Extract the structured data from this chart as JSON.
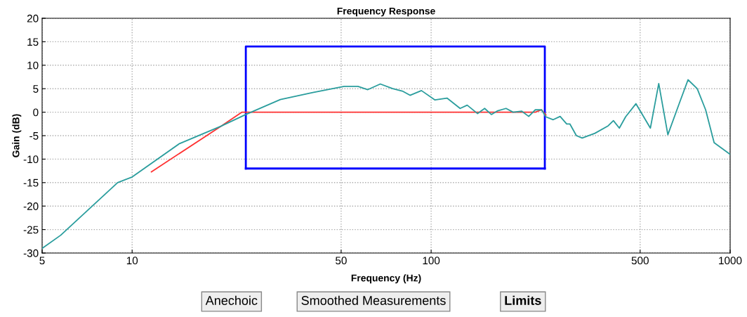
{
  "chart_data": {
    "type": "line",
    "title": "Frequency Response",
    "xlabel": "Frequency (Hz)",
    "ylabel": "Gain (dB)",
    "log": "x",
    "xlim": [
      5,
      1000
    ],
    "xticks": [
      5,
      10,
      50,
      100,
      500,
      1000
    ],
    "ylim": [
      -30,
      20
    ],
    "yticks": [
      -30,
      -25,
      -20,
      -15,
      -10,
      -5,
      0,
      5,
      10,
      15,
      20
    ],
    "grid": true,
    "line_style": "solid",
    "marker": "none",
    "annotations": [
      "Anechoic",
      "Smoothed Measurements",
      "Limits"
    ],
    "series": [
      {
        "color": "#0000ff",
        "x": [
          24,
          24,
          240,
          240
        ],
        "values": [
          -12,
          14,
          14,
          -12
        ]
      },
      {
        "color": "#0000ff",
        "x": [
          24,
          240
        ],
        "values": [
          -12,
          -12
        ]
      },
      {
        "color": "#ff3030",
        "x": [
          11.6,
          19.8,
          23.3,
          100,
          223,
          234,
          242
        ],
        "values": [
          -12.7,
          -3,
          0,
          0,
          0,
          0.5,
          -0.6
        ]
      },
      {
        "color": "#2a9d9d",
        "x": [
          5,
          5.77,
          8.94,
          10,
          14.4,
          19.8,
          24,
          31.3,
          40.2,
          51.2,
          56.9,
          61.4,
          67.6,
          74.4,
          80.1,
          85,
          92.8,
          103,
          113,
          125,
          132,
          143,
          151,
          159,
          167,
          178,
          188,
          201,
          212,
          223,
          234,
          242,
          256,
          270,
          284,
          291,
          306,
          320,
          353,
          391,
          407,
          426,
          447,
          484,
          541,
          577,
          619,
          677,
          723,
          776,
          828,
          884,
          1000
        ],
        "values": [
          -29,
          -26.2,
          -15,
          -13.8,
          -6.7,
          -3,
          -0.5,
          2.7,
          4.2,
          5.5,
          5.5,
          4.8,
          6,
          5,
          4.5,
          3.6,
          4.6,
          2.6,
          3,
          0.8,
          1.5,
          -0.3,
          0.8,
          -0.5,
          0.3,
          0.8,
          0,
          0.2,
          -0.9,
          0.5,
          0.5,
          -1,
          -1.6,
          -0.9,
          -2.5,
          -2.5,
          -5,
          -5.5,
          -4.5,
          -2.9,
          -1.8,
          -3.4,
          -1,
          1.8,
          -3.4,
          6.1,
          -4.8,
          2,
          6.9,
          5,
          0.5,
          -6.5,
          -9
        ]
      }
    ]
  }
}
